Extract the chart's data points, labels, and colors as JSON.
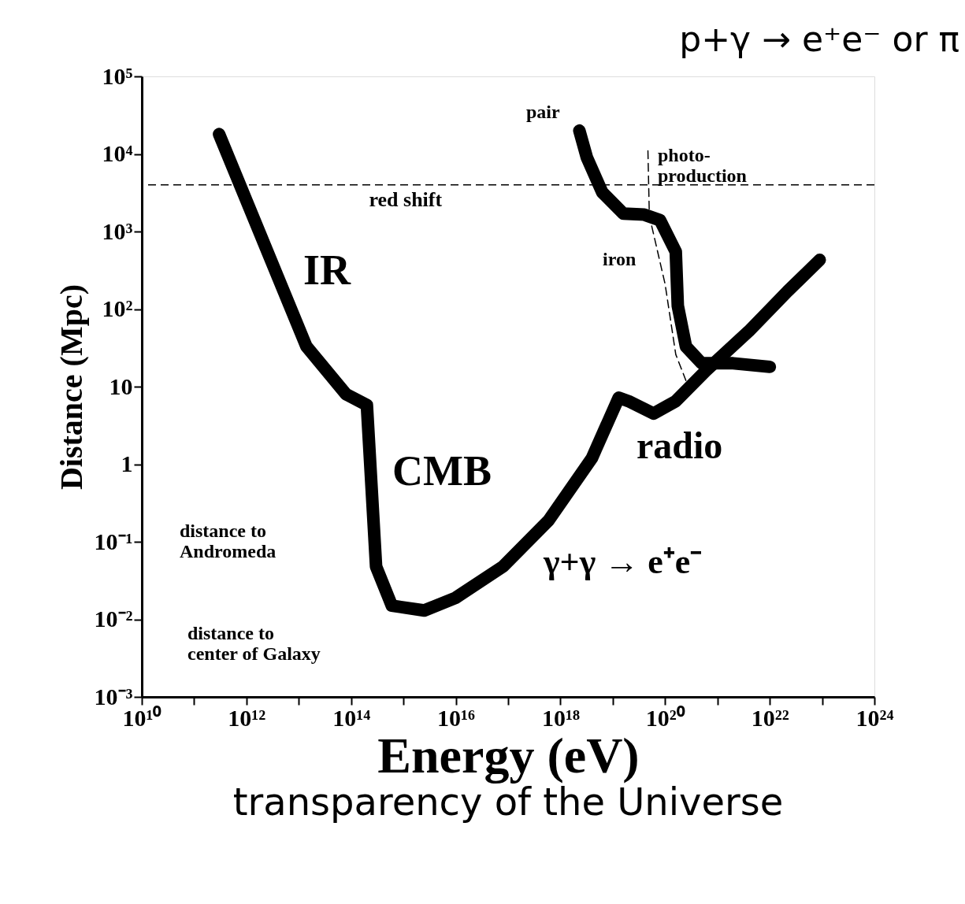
{
  "chart_data": {
    "type": "line",
    "title": "transparency of the Universe",
    "xlabel": "Energy (eV)",
    "ylabel": "Distance (Mpc)",
    "log": "xy",
    "grid": false,
    "marker": "none",
    "xlim": [
      10000000000.0,
      1e+24
    ],
    "ylim": [
      0.001,
      100000
    ],
    "xticks": [
      {
        "value": 10000000000.0,
        "label": "10¹⁰"
      },
      {
        "value": 100000000000.0,
        "label": null
      },
      {
        "value": 1000000000000.0,
        "label": "10¹²"
      },
      {
        "value": 10000000000000.0,
        "label": null
      },
      {
        "value": 100000000000000.0,
        "label": "10¹⁴"
      },
      {
        "value": 1000000000000000.0,
        "label": null
      },
      {
        "value": 1e+16,
        "label": "10¹⁶"
      },
      {
        "value": 1e+17,
        "label": null
      },
      {
        "value": 1e+18,
        "label": "10¹⁸"
      },
      {
        "value": 1e+19,
        "label": null
      },
      {
        "value": 1e+20,
        "label": "10²⁰"
      },
      {
        "value": 1e+21,
        "label": null
      },
      {
        "value": 1e+22,
        "label": "10²²"
      },
      {
        "value": 1e+23,
        "label": null
      },
      {
        "value": 1e+24,
        "label": "10²⁴"
      }
    ],
    "yticks": [
      {
        "value": 0.001,
        "label": "10⁻³"
      },
      {
        "value": 0.01,
        "label": "10⁻²"
      },
      {
        "value": 0.1,
        "label": "10⁻¹"
      },
      1,
      10,
      {
        "value": 100,
        "label": "10²"
      },
      {
        "value": 1000,
        "label": "10³"
      },
      {
        "value": 10000,
        "label": "10⁴"
      },
      {
        "value": 100000,
        "label": "10⁵"
      }
    ],
    "series": [
      {
        "color": "#000000",
        "line_style": "solid",
        "x": [
          300000000000.0,
          14000000000000.0,
          80000000000000.0,
          200000000000000.0,
          300000000000000.0,
          600000000000000.0,
          2500000000000000.0,
          1e+16,
          8e+16,
          6e+17,
          4e+18,
          1.3e+19,
          2e+19,
          6e+19,
          1.6e+20,
          6e+20,
          4e+21,
          2.2e+22,
          9e+22
        ],
        "values": [
          18000,
          33,
          8,
          5.8,
          0.048,
          0.015,
          0.013,
          0.019,
          0.048,
          0.19,
          1.2,
          7.2,
          6.5,
          4.5,
          6.5,
          16,
          52,
          170,
          430
        ]
      },
      {
        "color": "#000000",
        "line_style": "solid",
        "x": [
          2.3e+18,
          3.2e+18,
          6.3e+18,
          1.6e+19,
          4e+19,
          8e+19,
          1.6e+20,
          1.75e+20,
          2.5e+20,
          5e+20,
          2e+21,
          1e+22
        ],
        "values": [
          20000,
          9000,
          3200,
          1700,
          1650,
          1400,
          550,
          110,
          33,
          20,
          20,
          18
        ]
      },
      {
        "color": "#000000",
        "line_style": "dashed",
        "x": [
          4.7e+19,
          5e+19,
          1e+20,
          1.6e+20,
          2.5e+20
        ],
        "values": [
          11000,
          1600,
          210,
          26,
          12
        ]
      }
    ],
    "ref_lines": [
      {
        "axis": "y",
        "value": 4000,
        "label": "red shift",
        "line_style": "dashed",
        "color": "#000000"
      }
    ],
    "annotations": [
      "IR",
      "CMB",
      "radio",
      "pair",
      "photo-\nproduction",
      "iron",
      "γ+γ → e⁺e⁻",
      "distance to\nAndromeda",
      "distance to\ncenter of Galaxy",
      "p+γ → e⁺e⁻ or π"
    ]
  }
}
